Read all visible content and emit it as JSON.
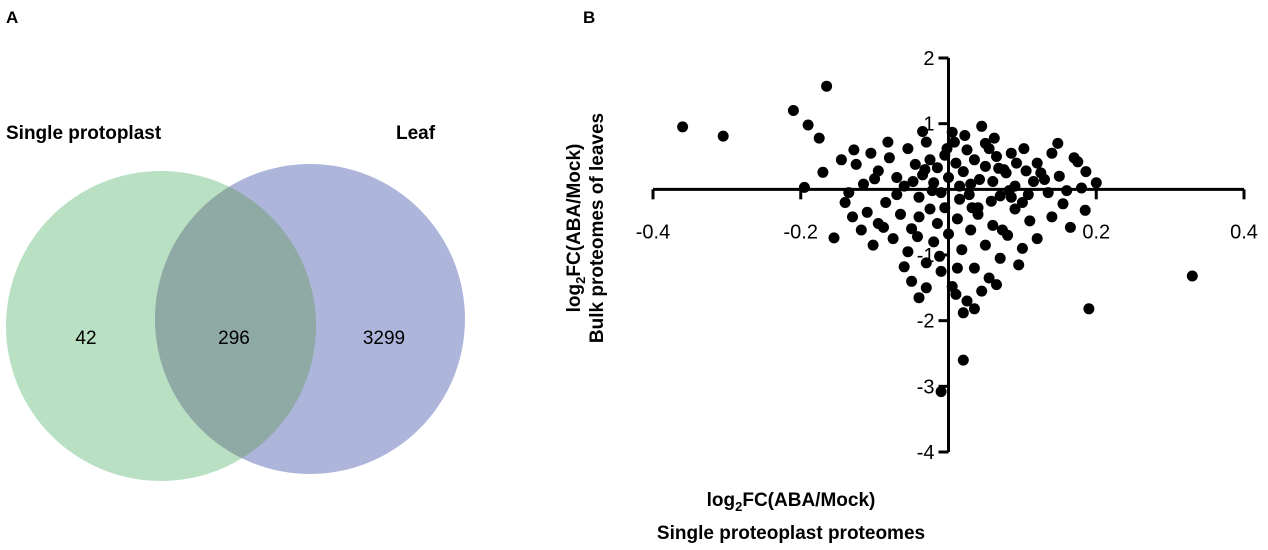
{
  "panel_a": {
    "letter": "A",
    "venn": {
      "left_label": "Single protoplast",
      "right_label": "Leaf",
      "left_only": "42",
      "overlap": "296",
      "right_only": "3299",
      "colors": {
        "left": "#b9e0c3",
        "right": "#adb5da",
        "overlap": "#8fa9a4"
      }
    }
  },
  "panel_b": {
    "letter": "B"
  },
  "chart_data": {
    "type": "scatter",
    "xlabel": {
      "prefix": "log",
      "sub": "2",
      "main": "FC(ABA/Mock)",
      "line2": "Single proteoplast proteomes"
    },
    "ylabel": {
      "prefix": "log",
      "sub": "2",
      "main": "FC(ABA/Mock)",
      "line2": "Bulk  proteomes of leaves"
    },
    "xlim": [
      -0.4,
      0.4
    ],
    "ylim": [
      -4,
      2
    ],
    "x_ticks": [
      -0.4,
      -0.2,
      0.2,
      0.4
    ],
    "x_tick_labels": [
      "-0.4",
      "-0.2",
      "0.2",
      "0.4"
    ],
    "y_ticks": [
      2,
      1,
      -1,
      -2,
      -3,
      -4
    ],
    "y_tick_labels": [
      "2",
      "1",
      "-1",
      "-2",
      "-3",
      "-4"
    ],
    "grid": false,
    "marker_color": "#000000",
    "points": [
      [
        -0.36,
        0.95
      ],
      [
        -0.305,
        0.81
      ],
      [
        -0.21,
        1.2
      ],
      [
        -0.165,
        1.57
      ],
      [
        -0.19,
        0.98
      ],
      [
        -0.175,
        0.78
      ],
      [
        -0.17,
        0.26
      ],
      [
        -0.195,
        0.03
      ],
      [
        -0.155,
        -0.74
      ],
      [
        -0.13,
        -0.42
      ],
      [
        -0.115,
        0.08
      ],
      [
        -0.105,
        0.55
      ],
      [
        -0.095,
        0.28
      ],
      [
        -0.08,
        0.48
      ],
      [
        -0.07,
        0.18
      ],
      [
        -0.06,
        0.05
      ],
      [
        -0.055,
        0.62
      ],
      [
        -0.045,
        0.38
      ],
      [
        -0.04,
        -0.12
      ],
      [
        -0.035,
        0.22
      ],
      [
        -0.03,
        0.72
      ],
      [
        -0.025,
        0.45
      ],
      [
        -0.02,
        0.1
      ],
      [
        -0.015,
        0.33
      ],
      [
        -0.01,
        -0.05
      ],
      [
        -0.005,
        0.52
      ],
      [
        0.0,
        0.18
      ],
      [
        0.005,
        0.87
      ],
      [
        0.01,
        0.4
      ],
      [
        0.015,
        -0.15
      ],
      [
        0.02,
        0.27
      ],
      [
        0.025,
        0.6
      ],
      [
        0.03,
        0.08
      ],
      [
        0.035,
        0.45
      ],
      [
        0.04,
        -0.28
      ],
      [
        0.045,
        0.96
      ],
      [
        0.05,
        0.35
      ],
      [
        0.055,
        0.62
      ],
      [
        0.06,
        0.12
      ],
      [
        0.065,
        0.5
      ],
      [
        0.07,
        -0.1
      ],
      [
        0.075,
        0.3
      ],
      [
        0.085,
        0.55
      ],
      [
        0.09,
        0.05
      ],
      [
        0.1,
        -0.2
      ],
      [
        0.12,
        0.4
      ],
      [
        0.13,
        0.15
      ],
      [
        0.15,
        0.2
      ],
      [
        0.175,
        0.42
      ],
      [
        0.2,
        0.1
      ],
      [
        -0.11,
        -0.35
      ],
      [
        -0.095,
        -0.52
      ],
      [
        -0.085,
        -0.2
      ],
      [
        -0.075,
        -0.75
      ],
      [
        -0.065,
        -0.38
      ],
      [
        -0.055,
        -0.95
      ],
      [
        -0.05,
        -0.6
      ],
      [
        -0.04,
        -0.42
      ],
      [
        -0.03,
        -1.12
      ],
      [
        -0.025,
        -0.3
      ],
      [
        -0.02,
        -0.8
      ],
      [
        -0.015,
        -0.52
      ],
      [
        -0.01,
        -1.25
      ],
      [
        -0.005,
        -0.28
      ],
      [
        0.0,
        -0.68
      ],
      [
        0.005,
        -1.48
      ],
      [
        0.012,
        -0.45
      ],
      [
        0.018,
        -0.92
      ],
      [
        0.025,
        -1.7
      ],
      [
        0.03,
        -0.62
      ],
      [
        0.035,
        -1.2
      ],
      [
        0.04,
        -0.38
      ],
      [
        0.05,
        -0.85
      ],
      [
        0.055,
        -1.35
      ],
      [
        0.06,
        -0.55
      ],
      [
        0.07,
        -1.05
      ],
      [
        0.08,
        -0.7
      ],
      [
        0.09,
        -0.3
      ],
      [
        0.1,
        -0.9
      ],
      [
        0.11,
        -0.48
      ],
      [
        0.12,
        -0.75
      ],
      [
        0.14,
        -0.42
      ],
      [
        0.155,
        -0.22
      ],
      [
        0.165,
        -0.58
      ],
      [
        0.185,
        -0.32
      ],
      [
        -0.05,
        -1.4
      ],
      [
        -0.04,
        -1.65
      ],
      [
        -0.03,
        -1.5
      ],
      [
        0.01,
        -1.6
      ],
      [
        0.02,
        -1.88
      ],
      [
        0.035,
        -1.82
      ],
      [
        0.045,
        -1.55
      ],
      [
        0.065,
        -1.45
      ],
      [
        -0.06,
        -1.18
      ],
      [
        -0.088,
        -0.58
      ],
      [
        -0.042,
        -0.72
      ],
      [
        -0.012,
        -1.02
      ],
      [
        0.032,
        -0.28
      ],
      [
        0.073,
        -0.62
      ],
      [
        0.095,
        -1.15
      ],
      [
        -0.07,
        -0.08
      ],
      [
        0.028,
        -0.08
      ],
      [
        0.058,
        -0.18
      ],
      [
        0.085,
        -0.12
      ],
      [
        0.135,
        -0.05
      ],
      [
        0.18,
        0.02
      ],
      [
        0.105,
        0.28
      ],
      [
        -0.125,
        0.38
      ],
      [
        -0.082,
        0.72
      ],
      [
        -0.035,
        0.88
      ],
      [
        0.008,
        0.72
      ],
      [
        -0.002,
        0.62
      ],
      [
        0.022,
        0.82
      ],
      [
        0.062,
        0.78
      ],
      [
        0.078,
        0.25
      ],
      [
        0.102,
        0.62
      ],
      [
        0.115,
        0.12
      ],
      [
        0.14,
        0.55
      ],
      [
        -0.048,
        0.12
      ],
      [
        -0.022,
        -0.02
      ],
      [
        0.015,
        0.05
      ],
      [
        0.042,
        0.15
      ],
      [
        0.068,
        0.32
      ],
      [
        0.082,
        -0.02
      ],
      [
        0.092,
        0.4
      ],
      [
        0.108,
        -0.08
      ],
      [
        0.125,
        0.25
      ],
      [
        -0.1,
        0.16
      ],
      [
        -0.128,
        0.6
      ],
      [
        0.16,
        -0.02
      ],
      [
        0.186,
        0.27
      ],
      [
        0.148,
        0.7
      ],
      [
        0.17,
        0.48
      ],
      [
        -0.145,
        0.45
      ],
      [
        -0.135,
        -0.05
      ],
      [
        -0.118,
        -0.62
      ],
      [
        -0.102,
        -0.85
      ],
      [
        -0.14,
        -0.2
      ],
      [
        0.33,
        -1.32
      ],
      [
        0.19,
        -1.82
      ],
      [
        0.02,
        -2.6
      ],
      [
        -0.01,
        -3.08
      ],
      [
        0.012,
        -1.2
      ],
      [
        -0.032,
        0.3
      ],
      [
        0.05,
        0.7
      ]
    ]
  }
}
